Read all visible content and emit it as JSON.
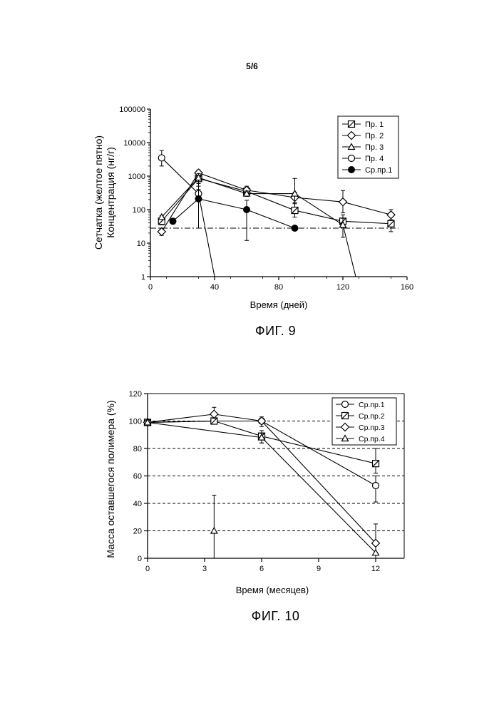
{
  "page": {
    "page_number": "5/6",
    "fig9_caption": "ФИГ. 9",
    "fig10_caption": "ФИГ. 10"
  },
  "chart_data": [
    {
      "type": "scatter",
      "log_y": true,
      "title": "",
      "xlabel": "Время (дней)",
      "ylabel_lines": [
        "Сетчатка (желтое пятно)",
        "Концентрация (нг/г)"
      ],
      "xlim": [
        0,
        160
      ],
      "ylim": [
        1,
        100000
      ],
      "x_ticks": [
        0,
        40,
        80,
        120,
        160
      ],
      "y_ticks": [
        1,
        10,
        100,
        1000,
        10000,
        100000
      ],
      "y_tick_labels": [
        "1",
        "10",
        "100",
        "1000",
        "10000",
        "100000"
      ],
      "reference_line": 28,
      "legend_position": "top-right",
      "series": [
        {
          "name": "Пр. 1",
          "marker": "square-slash",
          "x": [
            7,
            30,
            60,
            90,
            120,
            150
          ],
          "y": [
            45,
            850,
            350,
            95,
            45,
            38
          ],
          "err": [
            [
              7,
              35,
              65
            ],
            [
              30,
              500,
              1100
            ],
            [
              60,
              250,
              500
            ],
            [
              90,
              60,
              160
            ],
            [
              120,
              30,
              70
            ],
            [
              150,
              22,
              60
            ]
          ]
        },
        {
          "name": "Пр. 2",
          "marker": "diamond",
          "x": [
            7,
            30,
            60,
            90,
            120,
            150
          ],
          "y": [
            22,
            1250,
            380,
            230,
            170,
            70
          ],
          "err": [
            [
              7,
              17,
              28
            ],
            [
              30,
              900,
              1500
            ],
            [
              60,
              300,
              470
            ],
            [
              90,
              150,
              330
            ],
            [
              120,
              80,
              370
            ],
            [
              150,
              50,
              100
            ]
          ]
        },
        {
          "name": "Пр. 3",
          "marker": "triangle",
          "x": [
            7,
            30,
            60,
            90,
            120,
            128
          ],
          "y": [
            60,
            900,
            300,
            300,
            35,
            1
          ],
          "err": [
            [
              30,
              600,
              1200
            ],
            [
              60,
              250,
              360
            ],
            [
              90,
              160,
              850
            ],
            [
              120,
              15,
              55
            ]
          ]
        },
        {
          "name": "Пр. 4",
          "marker": "circle",
          "x": [
            7,
            30,
            40
          ],
          "y": [
            3500,
            300,
            1
          ],
          "err": [
            [
              7,
              2000,
              5800
            ],
            [
              30,
              200,
              400
            ]
          ]
        },
        {
          "name": "Ср.пр.1",
          "marker": "filled-circle",
          "x": [
            14,
            30,
            60,
            90
          ],
          "y": [
            45,
            210,
            100,
            28
          ],
          "err": [
            [
              14,
              38,
              55
            ],
            [
              30,
              28,
              600
            ],
            [
              60,
              12,
              190
            ]
          ]
        }
      ]
    },
    {
      "type": "line",
      "title": "",
      "xlabel": "Время (месяцев)",
      "ylabel": "Масса оставшегося полимера (%)",
      "xlim": [
        0,
        13.5
      ],
      "ylim": [
        0,
        120
      ],
      "x_ticks": [
        0,
        3,
        6,
        9,
        12
      ],
      "y_ticks": [
        0,
        20,
        40,
        60,
        80,
        100,
        120
      ],
      "grid_y": [
        20,
        40,
        60,
        80,
        100
      ],
      "legend_position": "top-right",
      "series": [
        {
          "name": "Ср.пр.1",
          "marker": "circle",
          "x": [
            0,
            3.5,
            6,
            12
          ],
          "y": [
            99,
            100,
            100,
            53
          ],
          "err": [
            [
              12,
              41,
              60
            ]
          ]
        },
        {
          "name": "Ср.пр.2",
          "marker": "square-slash",
          "x": [
            0,
            3.5,
            6,
            12
          ],
          "y": [
            99,
            100,
            89,
            69
          ],
          "err": [
            [
              6,
              84,
              93
            ],
            [
              12,
              62,
              80
            ]
          ]
        },
        {
          "name": "Ср.пр.3",
          "marker": "diamond",
          "x": [
            0,
            3.5,
            6,
            12
          ],
          "y": [
            99,
            105,
            100,
            11
          ],
          "err": [
            [
              3.5,
              102,
              110
            ],
            [
              6,
              96,
              103
            ],
            [
              12,
              0,
              25
            ]
          ]
        },
        {
          "name": "Ср.пр.4",
          "marker": "triangle",
          "x": [
            0,
            6,
            12
          ],
          "y": [
            99,
            88,
            4
          ],
          "isolated": {
            "x": 3.5,
            "y": 20
          },
          "err": [
            [
              3.5,
              0,
              46
            ],
            [
              6,
              84,
              91
            ]
          ]
        }
      ]
    }
  ]
}
